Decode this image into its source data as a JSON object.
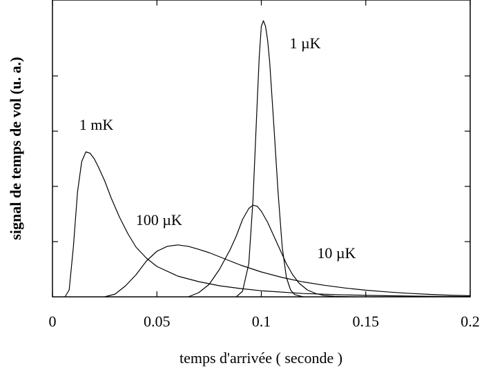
{
  "chart_data": {
    "type": "line",
    "title": "",
    "xlabel": "temps d'arrivée ( seconde )",
    "ylabel": "signal de temps de vol (u. a.)",
    "xlim": [
      0,
      0.2
    ],
    "ylim": [
      0,
      1
    ],
    "x_ticks": [
      "0",
      "0.05",
      "0.1",
      "0.15",
      "0.2"
    ],
    "x_tick_values": [
      0,
      0.05,
      0.1,
      0.15,
      0.2
    ],
    "y_tick_values": [
      0.2,
      0.4,
      0.6,
      0.8
    ],
    "y_tick_labels_shown": false,
    "grid": false,
    "line_color": "#000000",
    "series": [
      {
        "name": "1 mK",
        "x": [
          0.006,
          0.008,
          0.01,
          0.012,
          0.014,
          0.016,
          0.018,
          0.02,
          0.022,
          0.025,
          0.028,
          0.032,
          0.036,
          0.04,
          0.045,
          0.05,
          0.06,
          0.07,
          0.08,
          0.09,
          0.1,
          0.12,
          0.14,
          0.16,
          0.18,
          0.2
        ],
        "values": [
          0.0,
          0.025,
          0.18,
          0.38,
          0.49,
          0.525,
          0.52,
          0.5,
          0.47,
          0.42,
          0.36,
          0.29,
          0.23,
          0.18,
          0.14,
          0.11,
          0.075,
          0.055,
          0.04,
          0.03,
          0.022,
          0.012,
          0.007,
          0.004,
          0.002,
          0.001
        ]
      },
      {
        "name": "100 µK",
        "x": [
          0.025,
          0.03,
          0.035,
          0.04,
          0.045,
          0.05,
          0.055,
          0.06,
          0.065,
          0.07,
          0.075,
          0.08,
          0.085,
          0.09,
          0.1,
          0.11,
          0.12,
          0.13,
          0.14,
          0.15,
          0.16,
          0.17,
          0.18,
          0.19,
          0.2
        ],
        "values": [
          0.0,
          0.01,
          0.04,
          0.08,
          0.13,
          0.165,
          0.183,
          0.188,
          0.183,
          0.172,
          0.16,
          0.145,
          0.13,
          0.115,
          0.09,
          0.07,
          0.054,
          0.042,
          0.032,
          0.024,
          0.018,
          0.013,
          0.009,
          0.006,
          0.004
        ]
      },
      {
        "name": "10 µK",
        "x": [
          0.065,
          0.07,
          0.075,
          0.08,
          0.085,
          0.088,
          0.091,
          0.094,
          0.096,
          0.098,
          0.1,
          0.103,
          0.106,
          0.109,
          0.112,
          0.115,
          0.118,
          0.122,
          0.126,
          0.13,
          0.135,
          0.14,
          0.145
        ],
        "values": [
          0.0,
          0.015,
          0.045,
          0.1,
          0.17,
          0.22,
          0.28,
          0.32,
          0.332,
          0.328,
          0.31,
          0.27,
          0.22,
          0.17,
          0.12,
          0.08,
          0.05,
          0.025,
          0.012,
          0.005,
          0.002,
          0.001,
          0.0
        ]
      },
      {
        "name": "1 µK",
        "x": [
          0.088,
          0.091,
          0.094,
          0.096,
          0.098,
          0.099,
          0.1,
          0.101,
          0.102,
          0.103,
          0.104,
          0.106,
          0.108,
          0.11,
          0.112,
          0.114,
          0.116,
          0.12
        ],
        "values": [
          0.0,
          0.02,
          0.12,
          0.35,
          0.7,
          0.87,
          0.98,
          1.0,
          0.98,
          0.93,
          0.85,
          0.62,
          0.38,
          0.18,
          0.07,
          0.025,
          0.008,
          0.0
        ]
      }
    ],
    "annotations": [
      {
        "text": "1 mK",
        "x": 0.021,
        "y": 0.605
      },
      {
        "text": "100 µK",
        "x": 0.051,
        "y": 0.26
      },
      {
        "text": "10 µK",
        "x": 0.136,
        "y": 0.14
      },
      {
        "text": "1 µK",
        "x": 0.121,
        "y": 0.9
      }
    ]
  }
}
